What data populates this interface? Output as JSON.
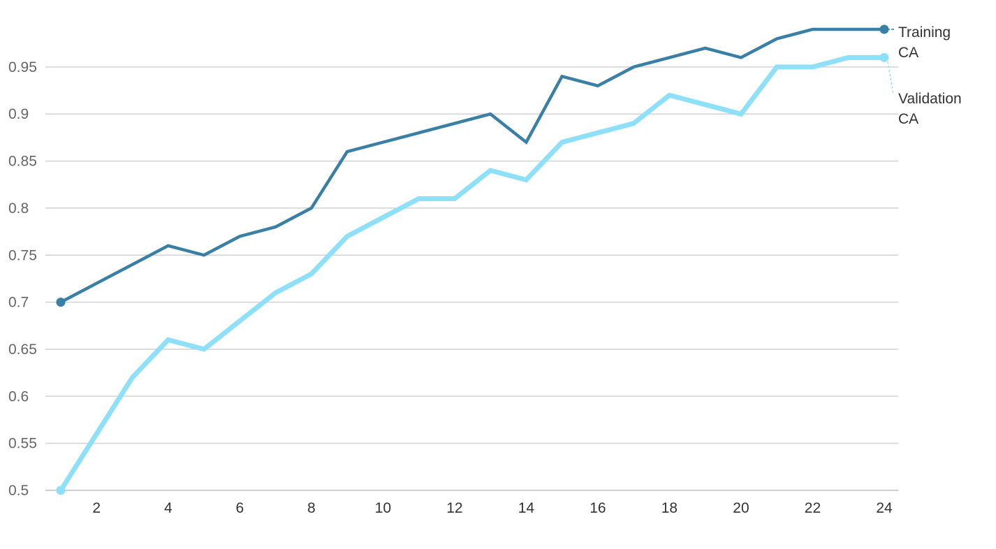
{
  "chart_data": {
    "type": "line",
    "title": "",
    "xlabel": "",
    "ylabel": "",
    "x": [
      1,
      2,
      3,
      4,
      5,
      6,
      7,
      8,
      9,
      10,
      11,
      12,
      13,
      14,
      15,
      16,
      17,
      18,
      19,
      20,
      21,
      22,
      23,
      24
    ],
    "xticks": [
      2,
      4,
      6,
      8,
      10,
      12,
      14,
      16,
      18,
      20,
      22,
      24
    ],
    "xlim": [
      1,
      24
    ],
    "yticks": [
      0.5,
      0.55,
      0.6,
      0.65,
      0.7,
      0.75,
      0.8,
      0.85,
      0.9,
      0.95
    ],
    "ytick_labels": [
      "0.5",
      "0.55",
      "0.6",
      "0.65",
      "0.7",
      "0.75",
      "0.8",
      "0.85",
      "0.9",
      "0.95"
    ],
    "ylim": [
      0.5,
      0.99
    ],
    "grid": true,
    "legend": "direct labels at line ends",
    "series": [
      {
        "name": "Training CA",
        "label_lines": [
          "Training",
          "CA"
        ],
        "color": "#3a7fa5",
        "values": [
          0.7,
          0.72,
          0.74,
          0.76,
          0.75,
          0.77,
          0.78,
          0.8,
          0.86,
          0.87,
          0.88,
          0.89,
          0.9,
          0.87,
          0.94,
          0.93,
          0.95,
          0.96,
          0.97,
          0.96,
          0.98,
          0.99,
          0.99,
          0.99
        ]
      },
      {
        "name": "Validation CA",
        "label_lines": [
          "Validation",
          "CA"
        ],
        "color": "#8ee0f9",
        "values": [
          0.5,
          0.56,
          0.62,
          0.66,
          0.65,
          0.68,
          0.71,
          0.73,
          0.77,
          0.79,
          0.81,
          0.81,
          0.84,
          0.83,
          0.87,
          0.88,
          0.89,
          0.92,
          0.91,
          0.9,
          0.95,
          0.95,
          0.96,
          0.96
        ]
      }
    ]
  }
}
